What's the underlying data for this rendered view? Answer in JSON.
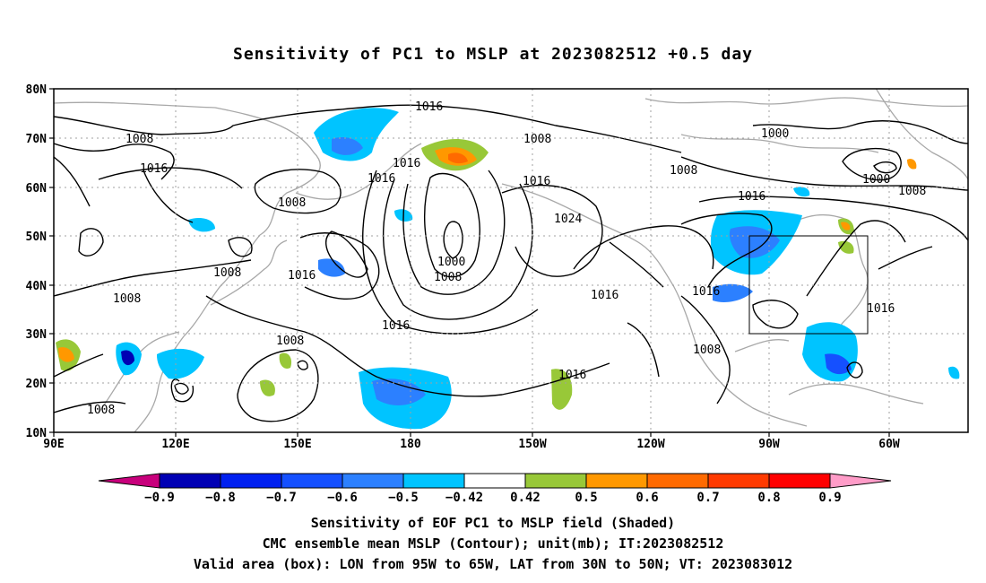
{
  "title": "Sensitivity of PC1 to MSLP at 2023082512 +0.5 day",
  "lat_labels": [
    "80N",
    "70N",
    "60N",
    "50N",
    "40N",
    "30N",
    "20N",
    "10N"
  ],
  "lon_labels": [
    "90E",
    "120E",
    "150E",
    "180",
    "150W",
    "120W",
    "90W",
    "60W"
  ],
  "contour_labels": [
    {
      "text": "1016"
    },
    {
      "text": "1008"
    },
    {
      "text": "1008"
    },
    {
      "text": "1016"
    },
    {
      "text": "1016"
    },
    {
      "text": "1016"
    },
    {
      "text": "1008"
    },
    {
      "text": "1008"
    },
    {
      "text": "1008"
    },
    {
      "text": "1016"
    },
    {
      "text": "1000"
    },
    {
      "text": "1008"
    },
    {
      "text": "1024"
    },
    {
      "text": "1016"
    },
    {
      "text": "1016"
    },
    {
      "text": "1008"
    },
    {
      "text": "1016"
    },
    {
      "text": "1008"
    },
    {
      "text": "1016"
    },
    {
      "text": "1000"
    },
    {
      "text": "1000"
    },
    {
      "text": "1008"
    },
    {
      "text": "1008"
    },
    {
      "text": "1016"
    },
    {
      "text": "1016"
    },
    {
      "text": "1008"
    }
  ],
  "colorbar": {
    "levels": [
      "-0.9",
      "-0.8",
      "-0.7",
      "-0.6",
      "-0.5",
      "-0.42",
      "0.42",
      "0.5",
      "0.6",
      "0.7",
      "0.8",
      "0.9"
    ],
    "colors": [
      "#c8007c",
      "#0000b4",
      "#0020f0",
      "#1550ff",
      "#2c80ff",
      "#00c4ff",
      "#ffffff",
      "#98c838",
      "#ff9800",
      "#ff6a00",
      "#ff3a00",
      "#ff0000",
      "#ff9cc8"
    ]
  },
  "valid_box": {
    "lon_from": "95W",
    "lon_to": "65W",
    "lat_from": "30N",
    "lat_to": "50N"
  },
  "footer": {
    "line1": "Sensitivity of EOF PC1 to MSLP field (Shaded)",
    "line2": "CMC ensemble mean MSLP (Contour); unit(mb); IT:2023082512",
    "line3": "Valid area (box): LON from 95W to 65W, LAT from 30N to 50N; VT: 2023083012"
  }
}
